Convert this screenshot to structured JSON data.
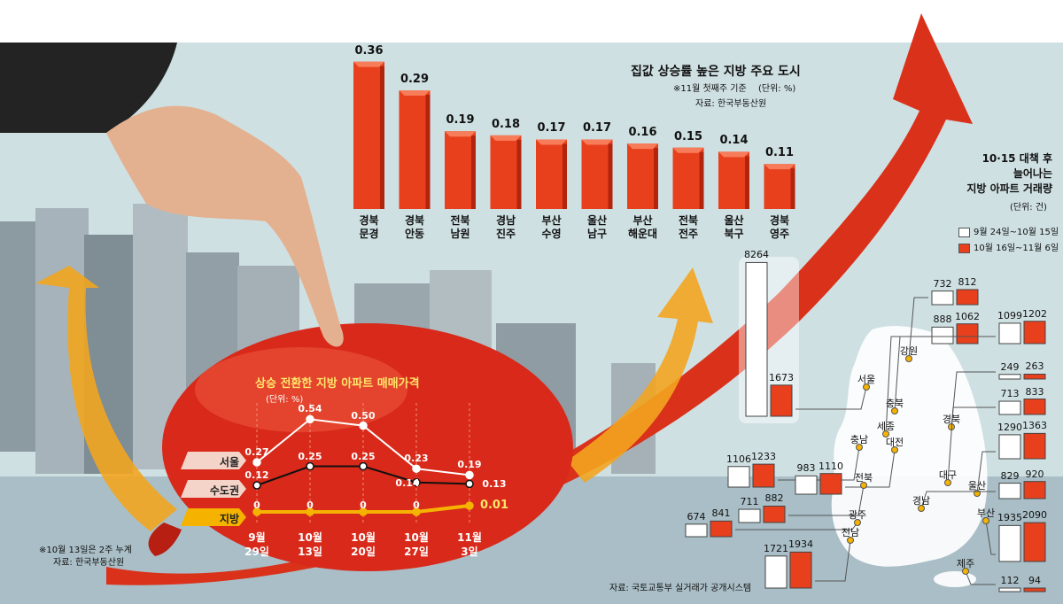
{
  "top_chart": {
    "title": "집값 상승률 높은 지방 주요 도시",
    "note": "※11월 첫째주 기준",
    "unit": "(단위: %)",
    "source": "자료: 한국부동산원"
  },
  "line_chart": {
    "title": "상승 전환한 지방 아파트 매매가격",
    "unit": "(단위: %)",
    "note": "※10월 13일은 2주 누계",
    "source": "자료: 한국부동산원"
  },
  "regional_chart": {
    "title_lines": [
      "10·15 대책 후",
      "늘어나는",
      "지방 아파트 거래량"
    ],
    "unit": "(단위: 건)",
    "legend": [
      "9월 24일~10월 15일",
      "10월 16일~11월 6일"
    ],
    "source": "자료: 국토교통부 실거래가 공개시스템"
  },
  "colors": {
    "bar_red": "#e8401c",
    "bar_dark": "#b3240c",
    "seoul_line": "#ffffff",
    "metro_line": "#111111",
    "local_line": "#f5b300"
  },
  "chart_data": [
    {
      "type": "bar",
      "title": "집값 상승률 높은 지방 주요 도시",
      "categories": [
        "경북 문경",
        "경북 안동",
        "전북 남원",
        "경남 진주",
        "부산 수영",
        "울산 남구",
        "부산 해운대",
        "전북 전주",
        "울산 북구",
        "경북 영주"
      ],
      "category_lines": [
        [
          "경북",
          "문경"
        ],
        [
          "경북",
          "안동"
        ],
        [
          "전북",
          "남원"
        ],
        [
          "경남",
          "진주"
        ],
        [
          "부산",
          "수영"
        ],
        [
          "울산",
          "남구"
        ],
        [
          "부산",
          "해운대"
        ],
        [
          "전북",
          "전주"
        ],
        [
          "울산",
          "북구"
        ],
        [
          "경북",
          "영주"
        ]
      ],
      "values": [
        0.36,
        0.29,
        0.19,
        0.18,
        0.17,
        0.17,
        0.16,
        0.15,
        0.14,
        0.11
      ],
      "value_labels": [
        "0.36",
        "0.29",
        "0.19",
        "0.18",
        "0.17",
        "0.17",
        "0.16",
        "0.15",
        "0.14",
        "0.11"
      ],
      "ylabel": "%",
      "ylim": [
        0,
        0.4
      ]
    },
    {
      "type": "line",
      "title": "상승 전환한 지방 아파트 매매가격",
      "categories": [
        "9월 29일",
        "10월 13일",
        "10월 20일",
        "10월 27일",
        "11월 3일"
      ],
      "category_lines": [
        [
          "9월",
          "29일"
        ],
        [
          "10월",
          "13일"
        ],
        [
          "10월",
          "20일"
        ],
        [
          "10월",
          "27일"
        ],
        [
          "11월",
          "3일"
        ]
      ],
      "series": [
        {
          "name": "서울",
          "values": [
            0.27,
            0.54,
            0.5,
            0.23,
            0.19
          ],
          "labels": [
            "0.27",
            "0.54",
            "0.50",
            "0.23",
            "0.19"
          ]
        },
        {
          "name": "수도권",
          "values": [
            0.12,
            0.25,
            0.25,
            0.14,
            0.13
          ],
          "labels": [
            "0.12",
            "0.25",
            "0.25",
            "0.14",
            "0.13"
          ]
        },
        {
          "name": "지방",
          "values": [
            0,
            0,
            0,
            0,
            0.01
          ],
          "labels": [
            "0",
            "0",
            "0",
            "0",
            "0.01"
          ]
        }
      ],
      "ylabel": "%"
    },
    {
      "type": "bar",
      "title": "10·15 대책 후 늘어나는 지방 아파트 거래량",
      "series_names": [
        "9월 24일~10월 15일",
        "10월 16일~11월 6일"
      ],
      "regions": [
        {
          "name": "서울",
          "before": 8264,
          "after": 1673,
          "before_label": "8264",
          "after_label": "1673"
        },
        {
          "name": "강원",
          "before": 732,
          "after": 812,
          "before_label": "732",
          "after_label": "812"
        },
        {
          "name": "충북",
          "before": 888,
          "after": 1062,
          "before_label": "888",
          "after_label": "1062"
        },
        {
          "name": "세종",
          "before": 1099,
          "after": 1202,
          "before_label": "1099",
          "after_label": "1202"
        },
        {
          "name": "경북",
          "before": 249,
          "after": 263,
          "before_label": "249",
          "after_label": "263"
        },
        {
          "name": "대구",
          "before": 713,
          "after": 833,
          "before_label": "713",
          "after_label": "833"
        },
        {
          "name": "울산",
          "before": 1290,
          "after": 1363,
          "before_label": "1290",
          "after_label": "1363"
        },
        {
          "name": "경남",
          "before": 829,
          "after": 920,
          "before_label": "829",
          "after_label": "920"
        },
        {
          "name": "부산",
          "before": 1935,
          "after": 2090,
          "before_label": "1935",
          "after_label": "2090"
        },
        {
          "name": "제주",
          "before": 112,
          "after": 94,
          "before_label": "112",
          "after_label": "94"
        },
        {
          "name": "충남",
          "before": 1106,
          "after": 1233,
          "before_label": "1106",
          "after_label": "1233"
        },
        {
          "name": "대전",
          "before": 983,
          "after": 1110,
          "before_label": "983",
          "after_label": "1110"
        },
        {
          "name": "전북",
          "before": 711,
          "after": 882,
          "before_label": "711",
          "after_label": "882"
        },
        {
          "name": "광주",
          "before": 674,
          "after": 841,
          "before_label": "674",
          "after_label": "841"
        },
        {
          "name": "전남",
          "before": 1721,
          "after": 1934,
          "before_label": "1721",
          "after_label": "1934"
        }
      ]
    }
  ]
}
